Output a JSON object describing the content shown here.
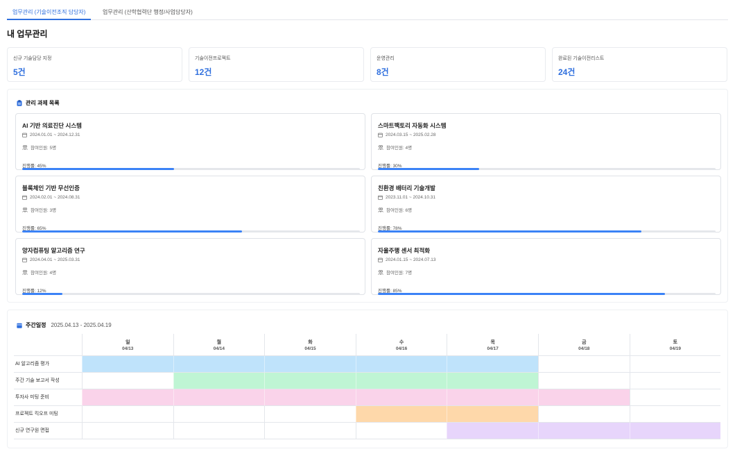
{
  "tabs": [
    {
      "label": "업무관리 (기술이전조직 담당자)",
      "active": true
    },
    {
      "label": "업무관리 (산학협력단 행정/사업담당자)",
      "active": false
    }
  ],
  "page_title": "내 업무관리",
  "stats": [
    {
      "label": "신규 기술담당 지정",
      "value": "5건"
    },
    {
      "label": "기술이전프로젝트",
      "value": "12건"
    },
    {
      "label": "운영관리",
      "value": "8건"
    },
    {
      "label": "완료된 기술이전리스트",
      "value": "24건"
    }
  ],
  "projects_section": {
    "title": "관리 과제 목록",
    "items": [
      {
        "title": "AI 기반 의료진단 시스템",
        "period": "2024.01.01 ~ 2024.12.31",
        "members": "참여인원: 5명",
        "progress_label": "진행률: 45%",
        "progress": 45
      },
      {
        "title": "스마트팩토리 자동화 시스템",
        "period": "2024.03.15 ~ 2025.02.28",
        "members": "참여인원: 4명",
        "progress_label": "진행률: 30%",
        "progress": 30
      },
      {
        "title": "블록체인 기반 무선인증",
        "period": "2024.02.01 ~ 2024.08.31",
        "members": "참여인원: 3명",
        "progress_label": "진행률: 65%",
        "progress": 65
      },
      {
        "title": "친환경 배터리 기술개발",
        "period": "2023.11.01 ~ 2024.10.31",
        "members": "참여인원: 6명",
        "progress_label": "진행률: 78%",
        "progress": 78
      },
      {
        "title": "양자컴퓨팅 알고리즘 연구",
        "period": "2024.04.01 ~ 2025.03.31",
        "members": "참여인원: 4명",
        "progress_label": "진행률: 12%",
        "progress": 12
      },
      {
        "title": "자율주행 센서 최적화",
        "period": "2024.01.15 ~ 2024.07.13",
        "members": "참여인원: 7명",
        "progress_label": "진행률: 85%",
        "progress": 85
      }
    ]
  },
  "schedule": {
    "title": "주간일정",
    "range": "2025.04.13 - 2025.04.19",
    "days": [
      {
        "day": "일",
        "date": "04/13"
      },
      {
        "day": "월",
        "date": "04/14"
      },
      {
        "day": "화",
        "date": "04/15"
      },
      {
        "day": "수",
        "date": "04/16"
      },
      {
        "day": "목",
        "date": "04/17"
      },
      {
        "day": "금",
        "date": "04/18"
      },
      {
        "day": "토",
        "date": "04/19"
      }
    ],
    "events": [
      {
        "name": "AI 알고리즘 평가",
        "start_day": 0,
        "end_day": 4,
        "color": "#bfe3fb"
      },
      {
        "name": "주간 기술 보고서 작성",
        "start_day": 1,
        "end_day": 4,
        "color": "#bff5d4"
      },
      {
        "name": "투자사 미팅 준비",
        "start_day": 0,
        "end_day": 5,
        "color": "#fad3ea"
      },
      {
        "name": "프로젝트 킥오프 미팅",
        "start_day": 3,
        "end_day": 4,
        "color": "#fed8aa"
      },
      {
        "name": "신규 연구원 면접",
        "start_day": 4,
        "end_day": 6,
        "color": "#e7d5fb"
      }
    ]
  },
  "colors": {
    "accent": "#2f6fde",
    "bar": "#3b82f6"
  }
}
